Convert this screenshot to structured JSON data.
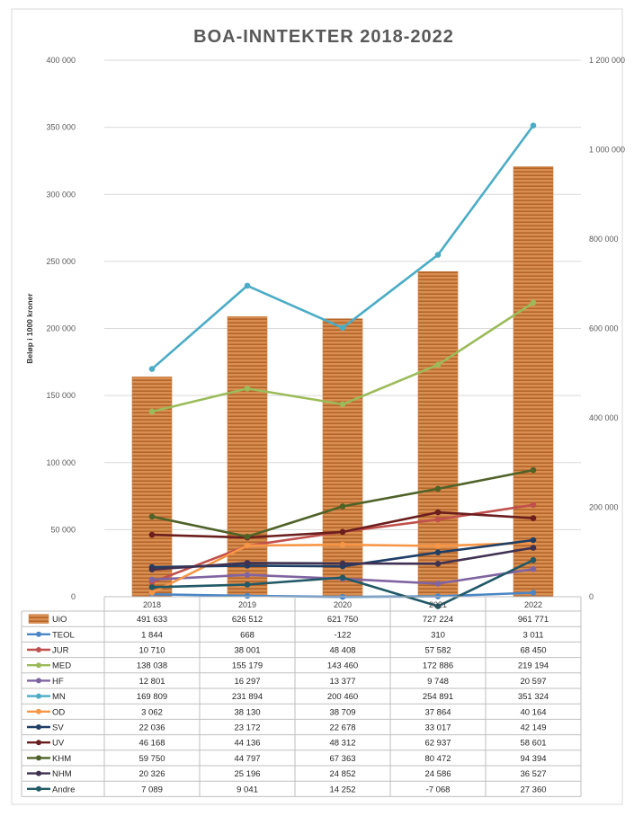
{
  "chart_data": {
    "type": "bar",
    "title": "BOA-INNTEKTER 2018-2022",
    "ylabel": "Beløp i 1000 kroner",
    "categories": [
      "2018",
      "2019",
      "2020",
      "2021",
      "2022"
    ],
    "y_left": {
      "ylim": [
        0,
        400000
      ],
      "ticks": [
        "0",
        "50 000",
        "100 000",
        "150 000",
        "200 000",
        "250 000",
        "300 000",
        "350 000",
        "400 000"
      ]
    },
    "y_right": {
      "ylim": [
        0,
        1200000
      ],
      "ticks": [
        "0",
        "200 000",
        "400 000",
        "600 000",
        "800 000",
        "1 000 000",
        "1 200 000"
      ]
    },
    "grid": true,
    "legend": "data-table",
    "bar_series": {
      "name": "UiO",
      "axis": "right",
      "color": "#C97A3E",
      "values": [
        491633,
        626512,
        621750,
        727224,
        961771
      ],
      "labels": [
        "491 633",
        "626 512",
        "621 750",
        "727 224",
        "961 771"
      ]
    },
    "line_series": [
      {
        "name": "TEOL",
        "color": "#4A86C5",
        "values": [
          1844,
          668,
          -122,
          310,
          3011
        ],
        "labels": [
          "1 844",
          "668",
          "-122",
          "310",
          "3 011"
        ]
      },
      {
        "name": "JUR",
        "color": "#C0504D",
        "values": [
          10710,
          38001,
          48408,
          57582,
          68450
        ],
        "labels": [
          "10 710",
          "38 001",
          "48 408",
          "57 582",
          "68 450"
        ]
      },
      {
        "name": "MED",
        "color": "#9BBB59",
        "values": [
          138038,
          155179,
          143460,
          172886,
          219194
        ],
        "labels": [
          "138 038",
          "155 179",
          "143 460",
          "172 886",
          "219 194"
        ]
      },
      {
        "name": "HF",
        "color": "#8064A2",
        "values": [
          12801,
          16297,
          13377,
          9748,
          20597
        ],
        "labels": [
          "12 801",
          "16 297",
          "13 377",
          "9 748",
          "20 597"
        ]
      },
      {
        "name": "MN",
        "color": "#4BACC6",
        "values": [
          169809,
          231894,
          200460,
          254891,
          351324
        ],
        "labels": [
          "169 809",
          "231 894",
          "200 460",
          "254 891",
          "351 324"
        ]
      },
      {
        "name": "OD",
        "color": "#F79646",
        "values": [
          3062,
          38130,
          38709,
          37864,
          40164
        ],
        "labels": [
          "3 062",
          "38 130",
          "38 709",
          "37 864",
          "40 164"
        ]
      },
      {
        "name": "SV",
        "color": "#1F3F66",
        "values": [
          22036,
          23172,
          22678,
          33017,
          42149
        ],
        "labels": [
          "22 036",
          "23 172",
          "22 678",
          "33 017",
          "42 149"
        ]
      },
      {
        "name": "UV",
        "color": "#6B1E1E",
        "values": [
          46168,
          44136,
          48312,
          62937,
          58601
        ],
        "labels": [
          "46 168",
          "44 136",
          "48 312",
          "62 937",
          "58 601"
        ]
      },
      {
        "name": "KHM",
        "color": "#4F6228",
        "values": [
          59750,
          44797,
          67363,
          80472,
          94394
        ],
        "labels": [
          "59 750",
          "44 797",
          "67 363",
          "80 472",
          "94 394"
        ]
      },
      {
        "name": "NHM",
        "color": "#3F3151",
        "values": [
          20326,
          25196,
          24852,
          24586,
          36527
        ],
        "labels": [
          "20 326",
          "25 196",
          "24 852",
          "24 586",
          "36 527"
        ]
      },
      {
        "name": "Andre",
        "color": "#215967",
        "values": [
          7089,
          9041,
          14252,
          -7068,
          27360
        ],
        "labels": [
          "7 089",
          "9 041",
          "14 252",
          "-7 068",
          "27 360"
        ]
      }
    ]
  }
}
